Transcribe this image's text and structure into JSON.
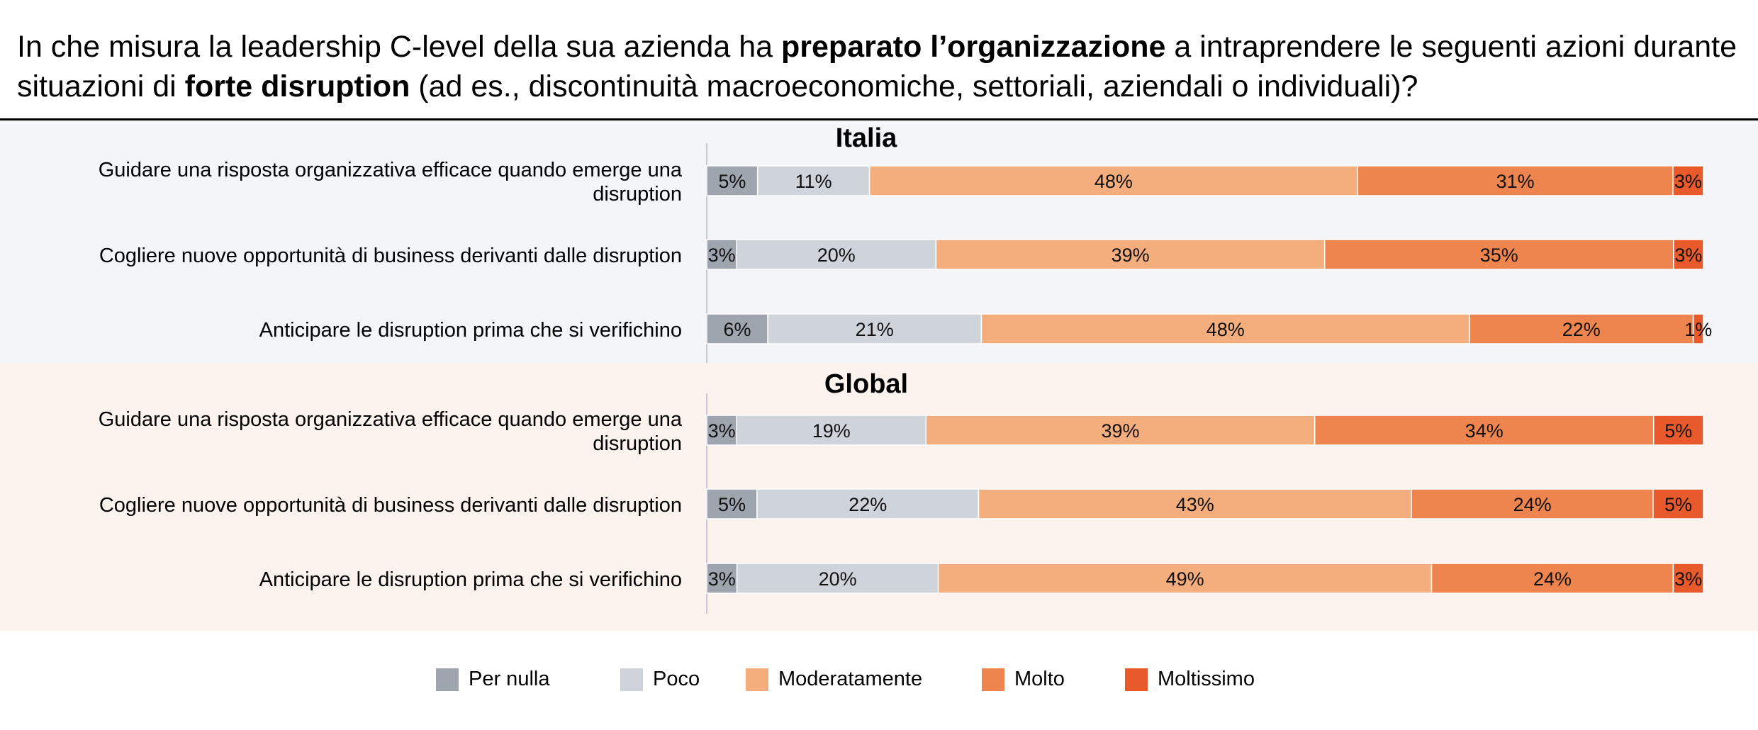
{
  "title": {
    "part1": "In che misura la leadership C-level della sua azienda ha ",
    "bold1": "preparato l’organizzazione",
    "part2": " a intraprendere le seguenti azioni durante situazioni di ",
    "bold2": "forte disruption",
    "part3": " (ad es., discontinuità macroeconomiche, settoriali, aziendali o individuali)?"
  },
  "legend": [
    "Per nulla",
    "Poco",
    "Moderatamente",
    "Molto",
    "Moltissimo"
  ],
  "colors": {
    "Per nulla": "#9fa5ae",
    "Poco": "#cfd4da",
    "Moderatamente": "#f4ad7c",
    "Molto": "#ee854f",
    "Moltissimo": "#e8592b",
    "panel_italia_bg": "#f3f5f8",
    "panel_global_bg": "#fcf3ee"
  },
  "chart_data": [
    {
      "type": "bar",
      "orientation": "horizontal",
      "stacked": true,
      "title": "Italia",
      "categories": [
        "Guidare una risposta organizzativa efficace quando emerge una disruption",
        "Cogliere nuove opportunità di business derivanti dalle disruption",
        "Anticipare le disruption prima che si verifichino"
      ],
      "series": [
        {
          "name": "Per nulla",
          "values": [
            5,
            3,
            6
          ]
        },
        {
          "name": "Poco",
          "values": [
            11,
            20,
            21
          ]
        },
        {
          "name": "Moderatamente",
          "values": [
            48,
            39,
            48
          ]
        },
        {
          "name": "Molto",
          "values": [
            31,
            35,
            22
          ]
        },
        {
          "name": "Moltissimo",
          "values": [
            3,
            3,
            1
          ]
        }
      ],
      "unit": "%"
    },
    {
      "type": "bar",
      "orientation": "horizontal",
      "stacked": true,
      "title": "Global",
      "categories": [
        "Guidare una risposta organizzativa efficace quando emerge una disruption",
        "Cogliere nuove opportunità di business derivanti dalle disruption",
        "Anticipare le disruption prima che si verifichino"
      ],
      "series": [
        {
          "name": "Per nulla",
          "values": [
            3,
            5,
            3
          ]
        },
        {
          "name": "Poco",
          "values": [
            19,
            22,
            20
          ]
        },
        {
          "name": "Moderatamente",
          "values": [
            39,
            43,
            49
          ]
        },
        {
          "name": "Molto",
          "values": [
            34,
            24,
            24
          ]
        },
        {
          "name": "Moltissimo",
          "values": [
            5,
            5,
            3
          ]
        }
      ],
      "unit": "%"
    }
  ]
}
